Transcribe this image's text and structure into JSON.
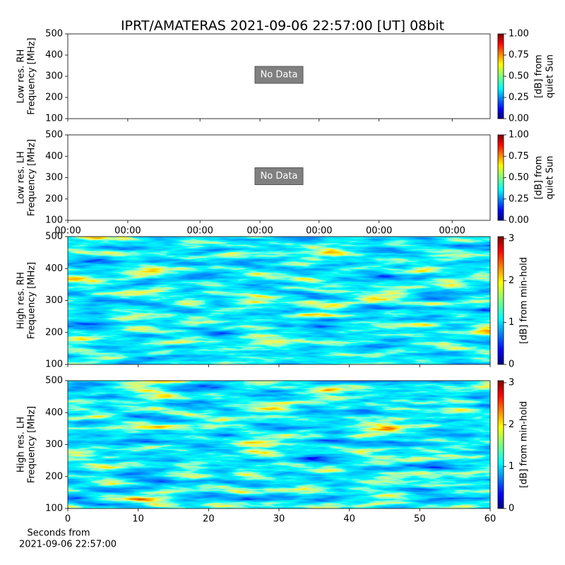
{
  "title": "IPRT/AMATERAS 2021-09-06 22:57:00 [UT]   08bit",
  "chart_data": [
    {
      "type": "heatmap",
      "ylabel": [
        "Low res. RH",
        "Frequency [MHz]"
      ],
      "annotation": "No Data",
      "ylim": [
        100,
        500
      ],
      "yticks": [
        100,
        200,
        300,
        400,
        500
      ],
      "xlim": [
        0,
        1
      ],
      "xticks": [
        0,
        0.142,
        0.313,
        0.455,
        0.595,
        0.737,
        0.91
      ],
      "show_xtick_labels": false,
      "colorbar": {
        "label": [
          "[dB] from",
          "quiet Sun"
        ],
        "clim": [
          0,
          1
        ],
        "ticks": [
          {
            "value": 0,
            "label": "0.00"
          },
          {
            "value": 0.25,
            "label": "0.25"
          },
          {
            "value": 0.5,
            "label": "0.50"
          },
          {
            "value": 0.75,
            "label": "0.75"
          },
          {
            "value": 1,
            "label": "1.00"
          }
        ]
      }
    },
    {
      "type": "heatmap",
      "ylabel": [
        "Low res. LH",
        "Frequency [MHz]"
      ],
      "annotation": "No Data",
      "ylim": [
        100,
        500
      ],
      "yticks": [
        100,
        200,
        300,
        400,
        500
      ],
      "xlim": [
        0,
        1
      ],
      "xticks": [
        {
          "value": 0,
          "label": "00:00"
        },
        {
          "value": 0.142,
          "label": "00:00"
        },
        {
          "value": 0.313,
          "label": "00:00"
        },
        {
          "value": 0.455,
          "label": "00:00"
        },
        {
          "value": 0.595,
          "label": "00:00"
        },
        {
          "value": 0.737,
          "label": "00:00"
        },
        {
          "value": 0.91,
          "label": "00:00"
        }
      ],
      "show_xtick_labels": true,
      "colorbar": {
        "label": [
          "[dB] from",
          "quiet Sun"
        ],
        "clim": [
          0,
          1
        ],
        "ticks": [
          {
            "value": 0,
            "label": "0.00"
          },
          {
            "value": 0.25,
            "label": "0.25"
          },
          {
            "value": 0.5,
            "label": "0.50"
          },
          {
            "value": 0.75,
            "label": "0.75"
          },
          {
            "value": 1,
            "label": "1.00"
          }
        ]
      }
    },
    {
      "type": "heatmap",
      "ylabel": [
        "High res. RH",
        "Frequency [MHz]"
      ],
      "image": true,
      "ylim": [
        100,
        500
      ],
      "yticks": [
        100,
        200,
        300,
        400,
        500
      ],
      "xlim": [
        0,
        60
      ],
      "xticks": [
        0,
        10,
        20,
        30,
        40,
        50,
        60
      ],
      "show_xtick_labels": false,
      "colorbar": {
        "label": [
          "[dB] from min-hold"
        ],
        "clim": [
          0,
          3.05
        ],
        "ticks": [
          0,
          1,
          2,
          3
        ]
      }
    },
    {
      "type": "heatmap",
      "ylabel": [
        "High res. LH",
        "Frequency [MHz]"
      ],
      "image": true,
      "ylim": [
        100,
        500
      ],
      "yticks": [
        100,
        200,
        300,
        400,
        500
      ],
      "xlim": [
        0,
        60
      ],
      "xticks": [
        0,
        10,
        20,
        30,
        40,
        50,
        60
      ],
      "show_xtick_labels": true,
      "xlabel": [
        "Seconds from",
        "2021-09-06 22:57:00"
      ],
      "colorbar": {
        "label": [
          "[dB] from min-hold"
        ],
        "clim": [
          0,
          3.05
        ],
        "ticks": [
          0,
          1,
          2,
          3
        ]
      }
    }
  ]
}
